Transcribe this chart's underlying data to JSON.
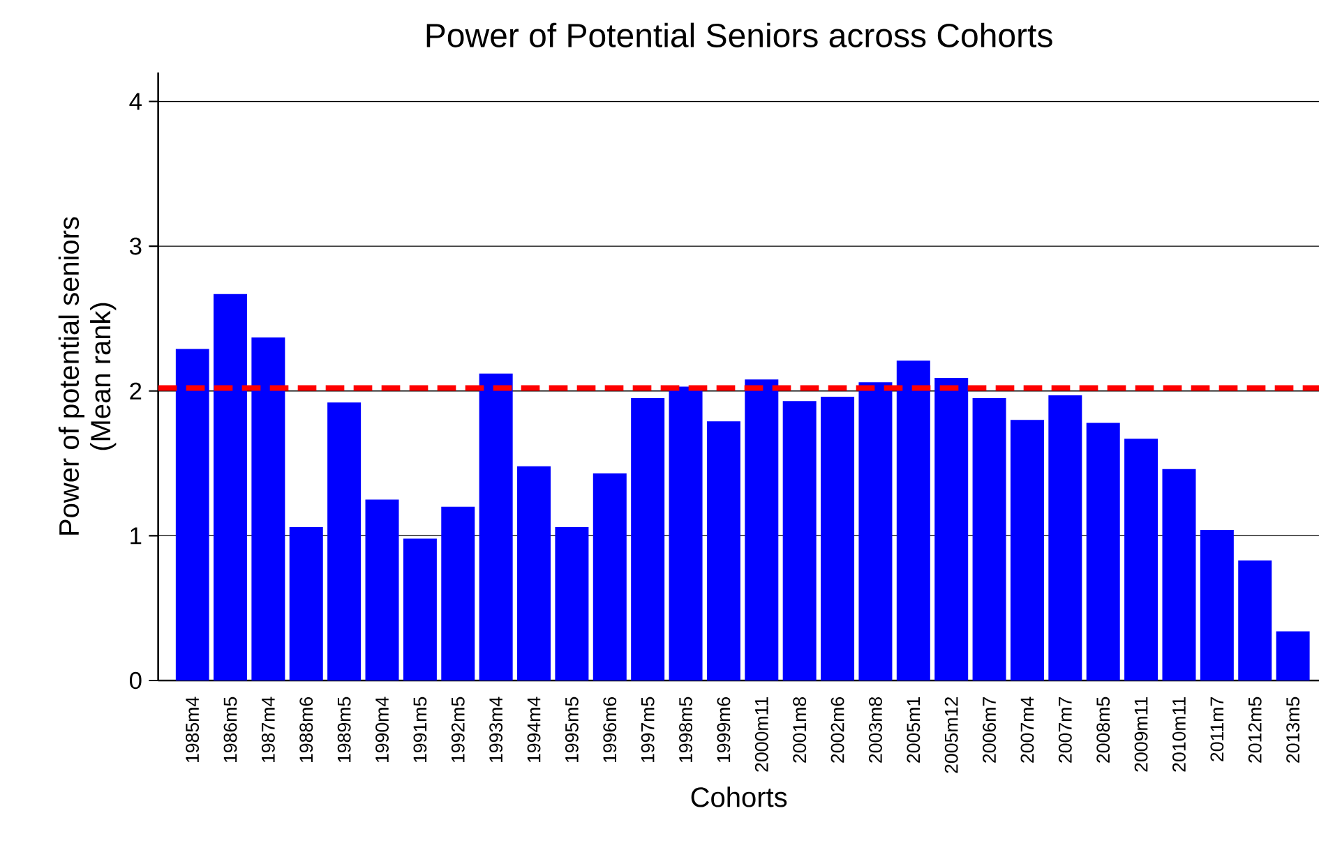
{
  "chart_data": {
    "type": "bar",
    "title": "Power of Potential Seniors across Cohorts",
    "xlabel": "Cohorts",
    "ylabel": "Power of potential seniors\n(Mean rank)",
    "categories": [
      "1985m4",
      "1986m5",
      "1987m4",
      "1988m6",
      "1989m5",
      "1990m4",
      "1991m5",
      "1992m5",
      "1993m4",
      "1994m4",
      "1995m5",
      "1996m6",
      "1997m5",
      "1998m5",
      "1999m6",
      "2000m11",
      "2001m8",
      "2002m6",
      "2003m8",
      "2005m1",
      "2005m12",
      "2006m7",
      "2007m4",
      "2007m7",
      "2008m5",
      "2009m11",
      "2010m11",
      "2011m7",
      "2012m5",
      "2013m5"
    ],
    "values": [
      2.29,
      2.67,
      2.37,
      1.06,
      1.92,
      1.25,
      0.98,
      1.2,
      2.12,
      1.48,
      1.06,
      1.43,
      1.95,
      2.03,
      1.79,
      2.08,
      1.93,
      1.96,
      2.06,
      2.21,
      2.09,
      1.95,
      1.8,
      1.97,
      1.78,
      1.67,
      1.46,
      1.04,
      0.83,
      0.34
    ],
    "color": "#0000ff",
    "ylim": [
      0,
      4.2
    ],
    "yticks": [
      0,
      1,
      2,
      3,
      4
    ],
    "grid": "y",
    "ref_lines": [
      {
        "axis": "y",
        "value": 2.02,
        "color": "#ff0000",
        "line_style": "dashed"
      }
    ]
  }
}
